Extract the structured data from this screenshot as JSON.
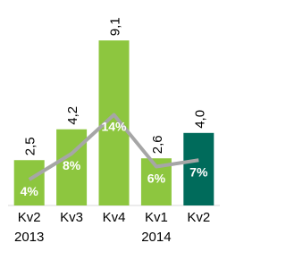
{
  "chart_data": {
    "type": "bar",
    "categories": [
      "Kv2 2013",
      "Kv3",
      "Kv4",
      "Kv1 2014",
      "Kv2"
    ],
    "values": [
      2.5,
      4.2,
      9.1,
      2.6,
      4.0
    ],
    "value_labels": [
      "2,5",
      "4,2",
      "9,1",
      "2,6",
      "4,0"
    ],
    "colors": [
      "#8dc63f",
      "#8dc63f",
      "#8dc63f",
      "#8dc63f",
      "#006b5b"
    ],
    "ylim": [
      0,
      10
    ],
    "line": {
      "values": [
        4,
        8,
        14,
        6,
        7
      ],
      "value_labels": [
        "4%",
        "8%",
        "14%",
        "6%",
        "7%"
      ],
      "axis": "y2",
      "color": "#a6a6a6"
    },
    "y2lim": [
      0,
      28
    ]
  }
}
